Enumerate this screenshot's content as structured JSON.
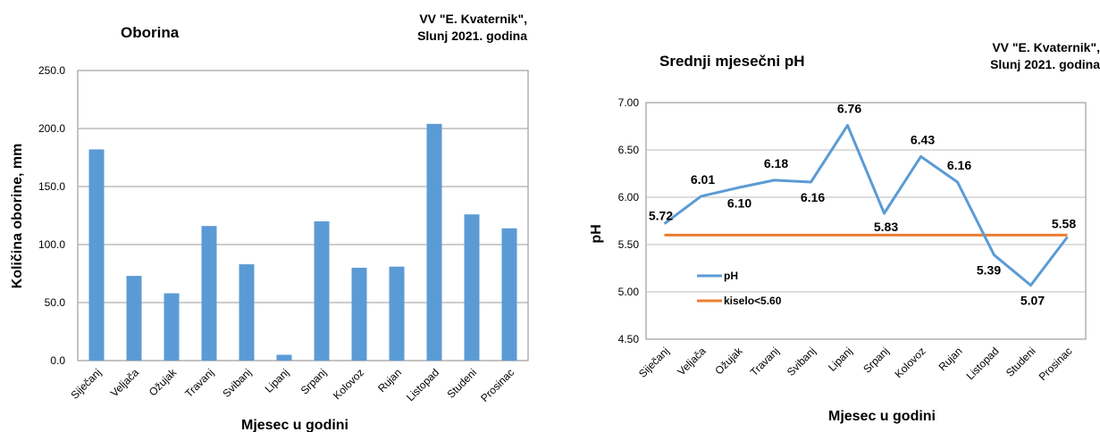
{
  "chart_data": [
    {
      "type": "bar",
      "title": "Oborina",
      "note": [
        "VV \"E. Kvaternik\",",
        "Slunj 2021. godina"
      ],
      "xlabel": "Mjesec u godini",
      "ylabel": "Količina oborine, mm",
      "categories": [
        "Siječanj",
        "Veljača",
        "Ožujak",
        "Travanj",
        "Svibanj",
        "Lipanj",
        "Srpanj",
        "Kolovoz",
        "Rujan",
        "Listopad",
        "Studeni",
        "Prosinac"
      ],
      "values": [
        182,
        73,
        58,
        116,
        83,
        5,
        120,
        80,
        81,
        204,
        126,
        114
      ],
      "ylim": [
        0,
        250
      ],
      "yticks": [
        "0.0",
        "50.0",
        "100.0",
        "150.0",
        "200.0",
        "250.0"
      ],
      "grid": true,
      "color": "#5b9bd5"
    },
    {
      "type": "line",
      "title": "Srednji mjesečni pH",
      "note": [
        "VV \"E. Kvaternik\",",
        "Slunj 2021. godina"
      ],
      "xlabel": "Mjesec u godini",
      "ylabel": "pH",
      "categories": [
        "Siječanj",
        "Veljača",
        "Ožujak",
        "Travanj",
        "Svibanj",
        "Lipanj",
        "Srpanj",
        "Kolovoz",
        "Rujan",
        "Listopad",
        "Studeni",
        "Prosinac"
      ],
      "series": [
        {
          "name": "pH",
          "color": "#5b9bd5",
          "values": [
            5.72,
            6.01,
            6.1,
            6.18,
            6.16,
            6.76,
            5.83,
            6.43,
            6.16,
            5.39,
            5.07,
            5.58
          ]
        },
        {
          "name": "kiselo<5.60",
          "color": "#ed7d31",
          "values": [
            5.6,
            5.6,
            5.6,
            5.6,
            5.6,
            5.6,
            5.6,
            5.6,
            5.6,
            5.6,
            5.6,
            5.6
          ]
        }
      ],
      "data_labels": [
        "5.72",
        "6.01",
        "6.10",
        "6.18",
        "6.16",
        "6.76",
        "5.83",
        "6.43",
        "6.16",
        "5.39",
        "5.07",
        "5.58"
      ],
      "ylim": [
        4.5,
        7.0
      ],
      "yticks": [
        "4.50",
        "5.00",
        "5.50",
        "6.00",
        "6.50",
        "7.00"
      ],
      "grid": true,
      "legend_position": "bottom-left inside"
    }
  ]
}
